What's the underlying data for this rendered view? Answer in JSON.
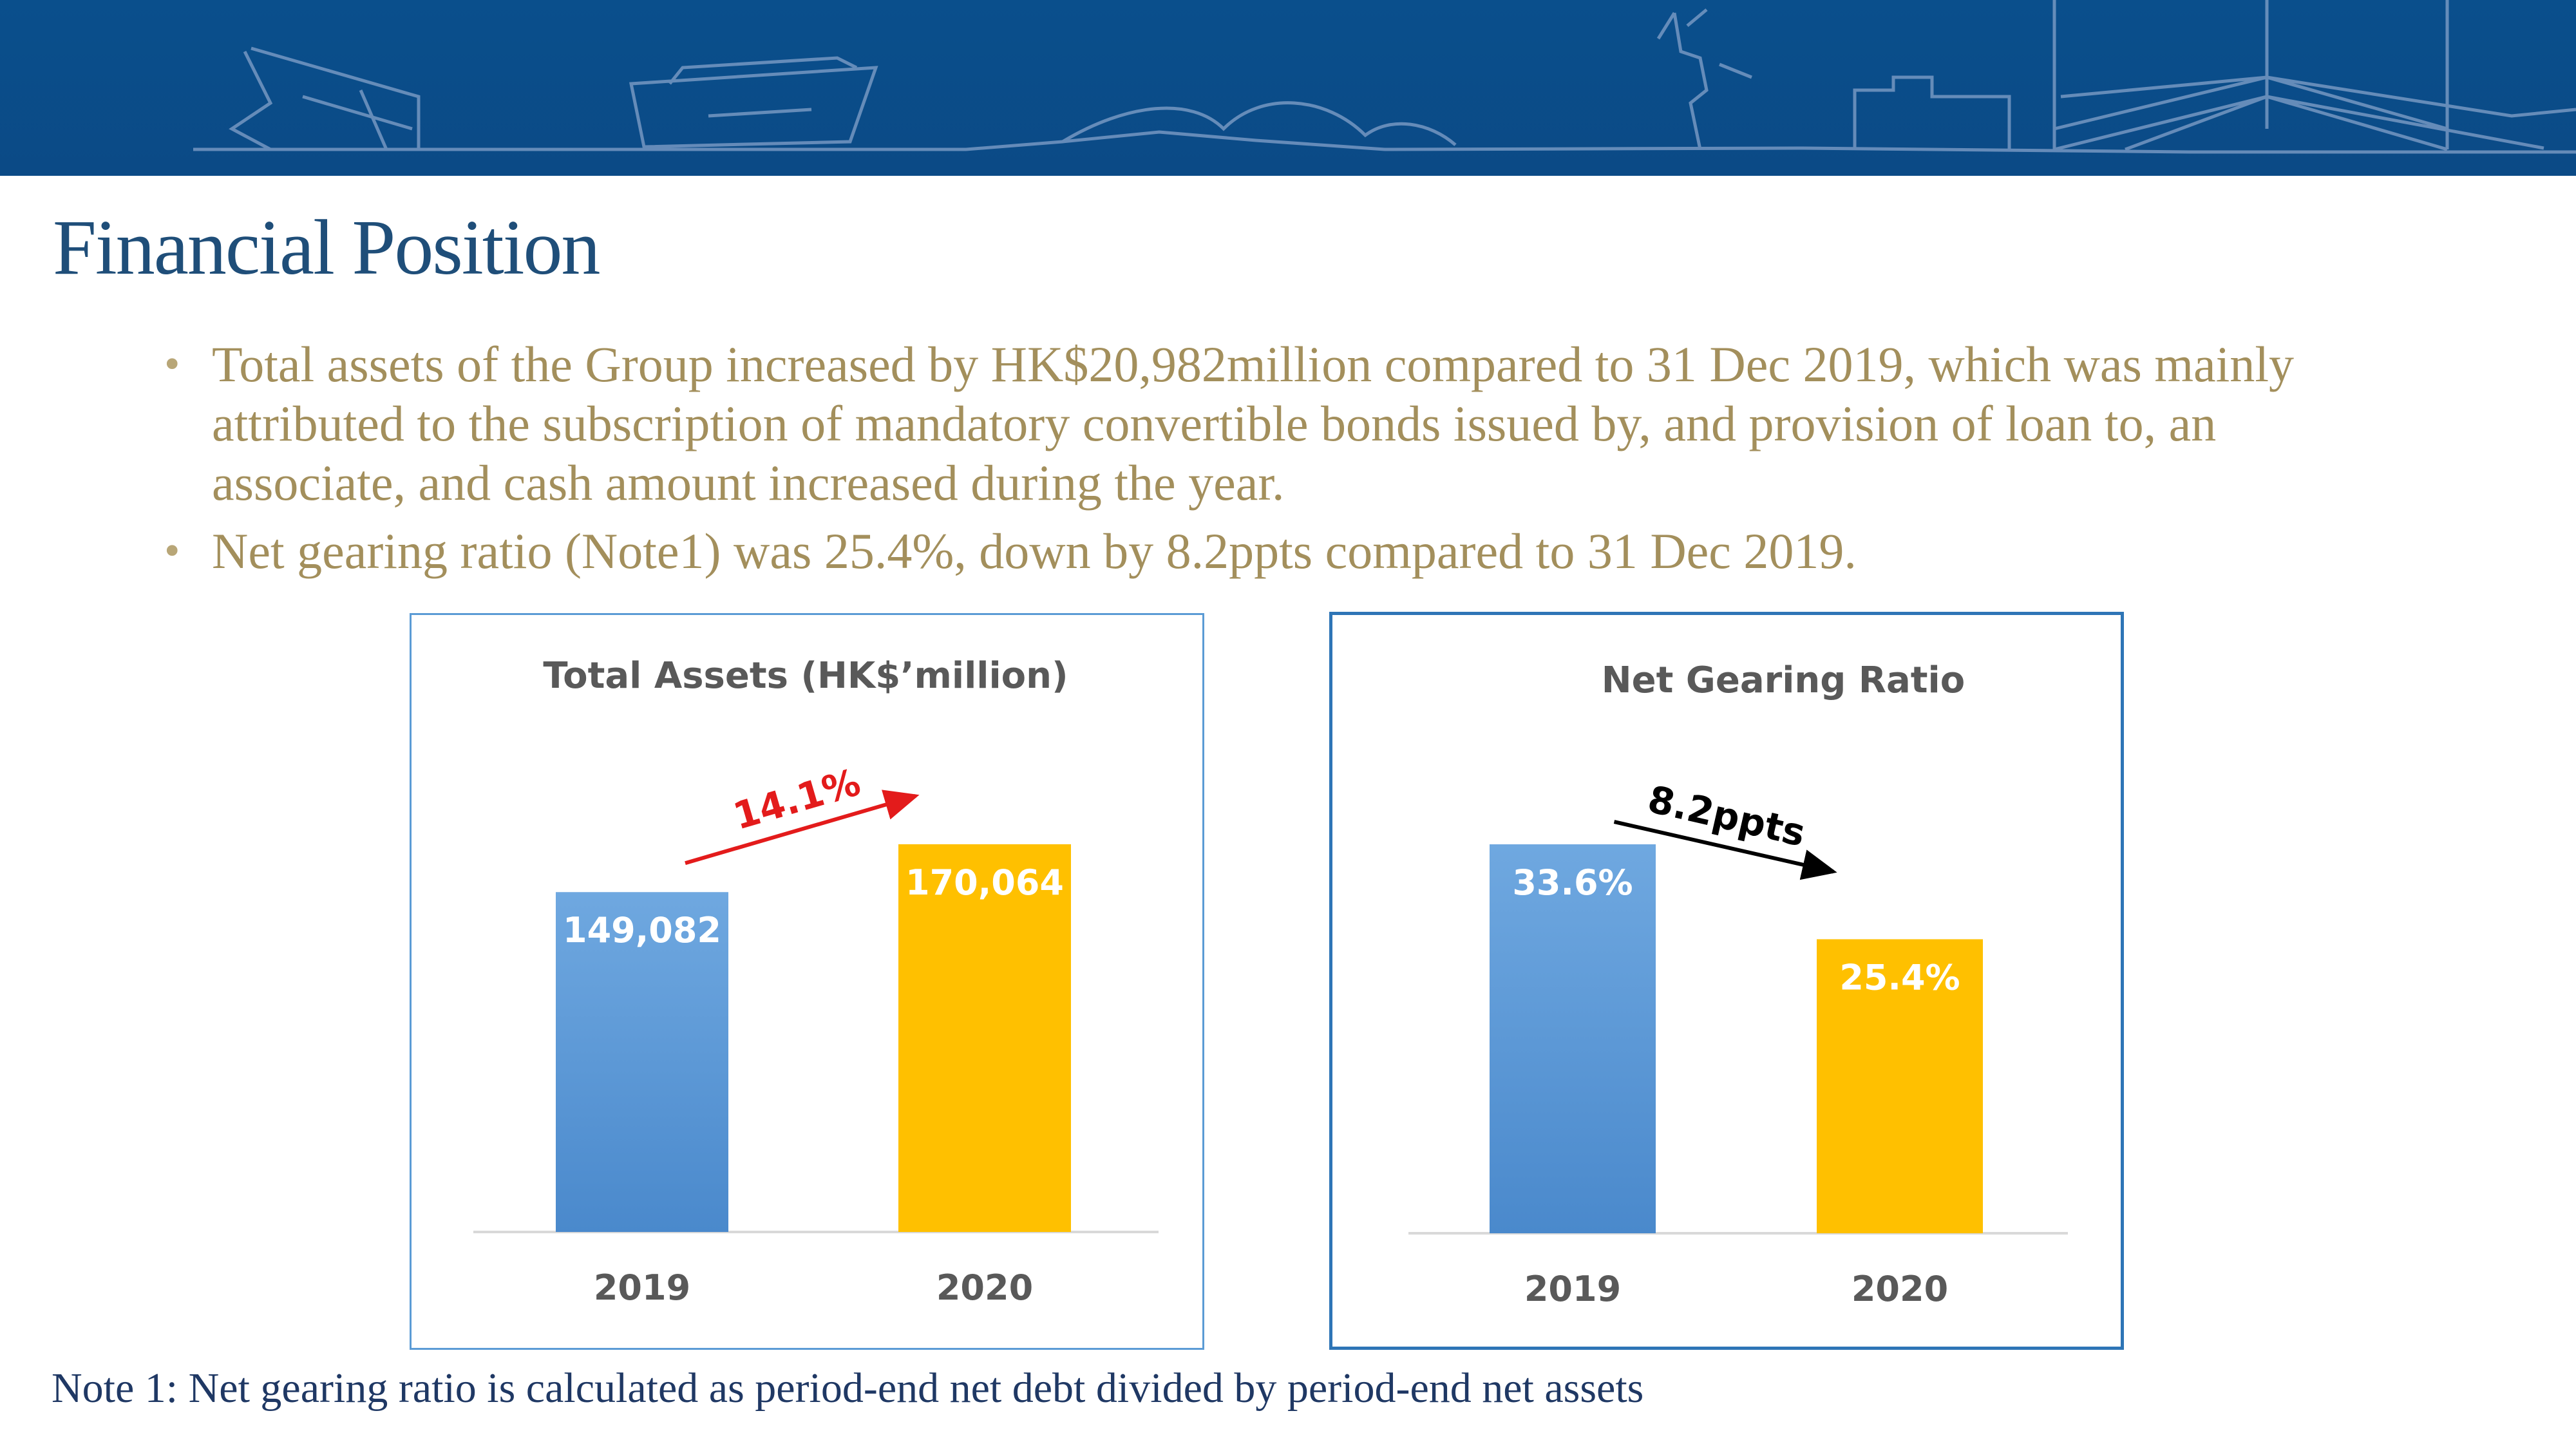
{
  "header": {
    "title": "Financial Position"
  },
  "bullets": [
    {
      "text": "Total assets of the Group increased by HK$20,982million compared to 31 Dec 2019, which was mainly attributed to the subscription of mandatory convertible bonds issued by, and provision of loan to, an associate, and cash amount increased during the year."
    },
    {
      "text": "Net gearing ratio (Note1) was 25.4%, down by 8.2ppts compared to 31 Dec 2019."
    }
  ],
  "note": "Note 1: Net gearing ratio is calculated as period-end net debt divided by period-end net assets",
  "colors": {
    "banner": "#0b4a86",
    "title": "#1f4e79",
    "bullet_text": "#a38f5c",
    "bar_2019": "#5b9bd5",
    "bar_2020": "#ffc000",
    "increase_arrow": "#e31b1b",
    "decrease_arrow": "#000000"
  },
  "chart_data": [
    {
      "type": "bar",
      "title": "Total Assets (HK$’million)",
      "categories": [
        "2019",
        "2020"
      ],
      "values": [
        149082,
        170064
      ],
      "value_labels": [
        "149,082",
        "170,064"
      ],
      "ylim": [
        0,
        200000
      ],
      "grid": false,
      "annotation": {
        "text": "14.1%",
        "direction": "up",
        "color": "#e31b1b"
      }
    },
    {
      "type": "bar",
      "title": "Net Gearing Ratio",
      "categories": [
        "2019",
        "2020"
      ],
      "values": [
        33.6,
        25.4
      ],
      "value_labels": [
        "33.6%",
        "25.4%"
      ],
      "ylim": [
        0,
        39.5
      ],
      "grid": false,
      "annotation": {
        "text": "8.2ppts",
        "direction": "down",
        "color": "#000000"
      }
    }
  ]
}
